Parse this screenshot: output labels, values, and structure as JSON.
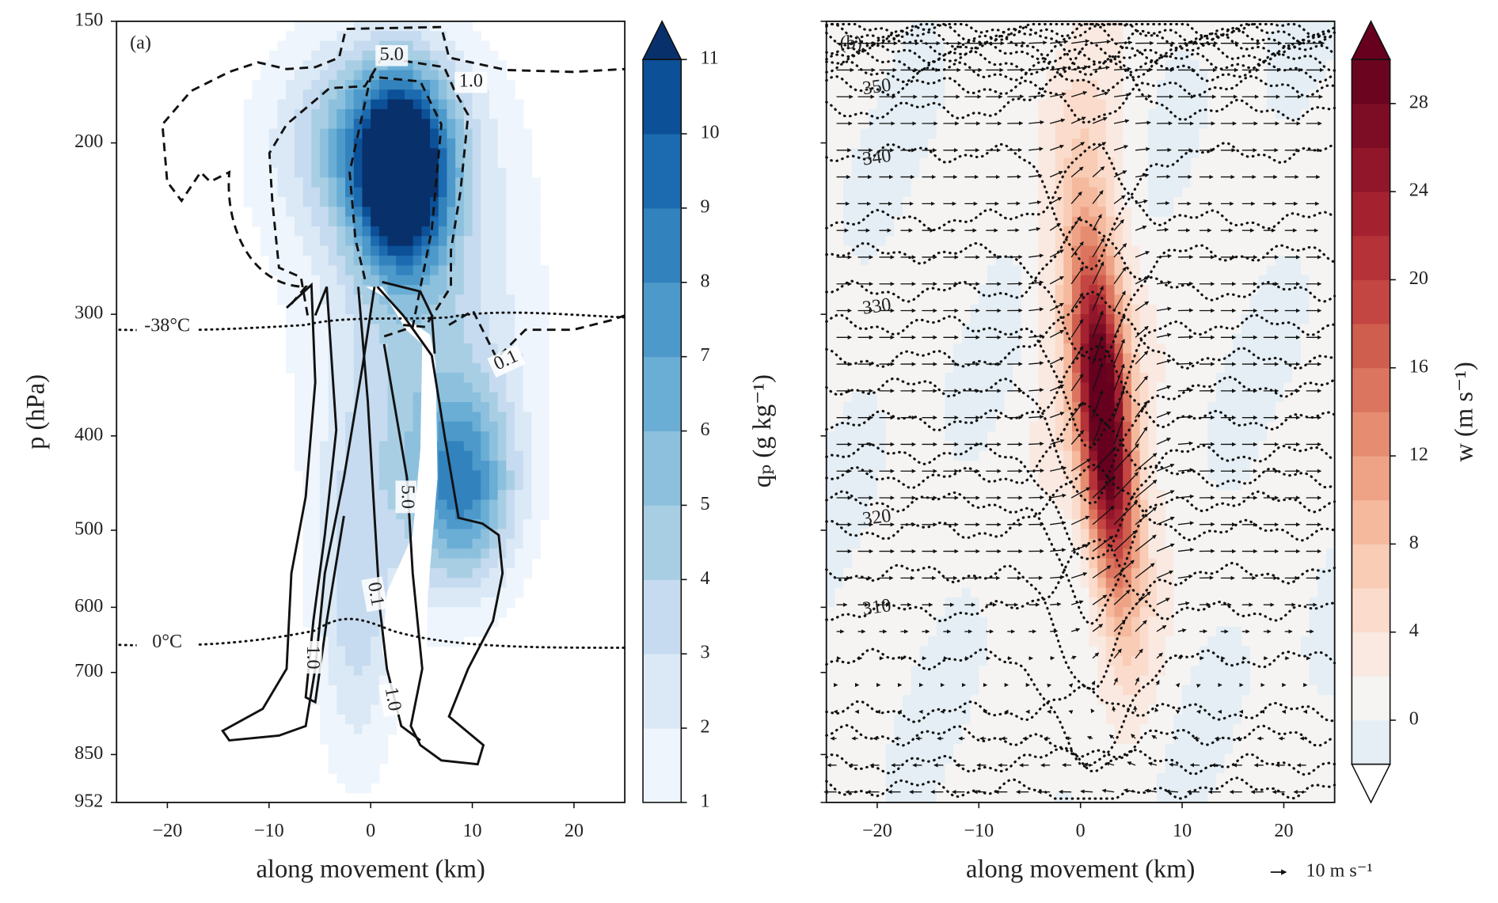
{
  "chart_data": [
    {
      "type": "contour",
      "panel_label": "(a)",
      "xlabel": "along movement (km)",
      "ylabel": "p (hPa)",
      "xlim": [
        -25,
        25
      ],
      "xticks": [
        {
          "value": -20,
          "label": "−20"
        },
        {
          "value": -10,
          "label": "−10"
        },
        0,
        10,
        20
      ],
      "ylim": [
        952,
        150
      ],
      "yscale": "log",
      "yticks": [
        150,
        200,
        300,
        400,
        500,
        600,
        700,
        850,
        952
      ],
      "colorbar": {
        "label": "qₚ (g kg⁻¹)",
        "lim": [
          1,
          11
        ],
        "levels": [
          1,
          2,
          3,
          4,
          5,
          6,
          7,
          8,
          9,
          10,
          11
        ],
        "ticks": [
          1,
          2,
          3,
          4,
          5,
          6,
          7,
          8,
          9,
          10,
          11
        ],
        "colors": [
          "#eef5fc",
          "#dbe9f6",
          "#c6dbef",
          "#a8cee4",
          "#8dc0dd",
          "#6aaed6",
          "#4d99ca",
          "#3282be",
          "#1c6aaf",
          "#0c5097"
        ],
        "extend": "max",
        "over_color": "#08306b"
      },
      "contour_labels": [
        "5.0",
        "1.0",
        "0.1",
        "5.0",
        "0.1",
        "1.0",
        "1.0"
      ],
      "isotherm_labels": [
        "-38°C",
        "0°C"
      ]
    },
    {
      "type": "contour",
      "panel_label": "(b)",
      "xlabel": "along movement (km)",
      "xlim": [
        -25,
        25
      ],
      "xticks": [
        {
          "value": -20,
          "label": "−20"
        },
        {
          "value": -10,
          "label": "−10"
        },
        0,
        10,
        20
      ],
      "ylim": [
        952,
        150
      ],
      "yscale": "log",
      "yticks": [
        150,
        200,
        300,
        400,
        500,
        600,
        700,
        850,
        952
      ],
      "colorbar": {
        "label": "w (m s⁻¹)",
        "lim": [
          -2,
          30
        ],
        "levels": [
          -2,
          0,
          2,
          4,
          6,
          8,
          10,
          12,
          14,
          16,
          18,
          20,
          22,
          24,
          26,
          28,
          30
        ],
        "ticks": [
          0,
          4,
          8,
          12,
          16,
          20,
          24,
          28
        ],
        "colors": [
          "#e4eef4",
          "#f5f4f3",
          "#f9e9e1",
          "#fbdccc",
          "#f8ccb5",
          "#f5b99e",
          "#efa386",
          "#e68c70",
          "#dc755f",
          "#d05e4f",
          "#c34642",
          "#b53238",
          "#a42230",
          "#91162a",
          "#7d0d24",
          "#6b051f"
        ],
        "extend": "both",
        "over_color": "#67001f",
        "under_color": "#ffffff"
      },
      "isentrope_labels": [
        "350",
        "340",
        "330",
        "320",
        "310"
      ],
      "quiver_key": "10 m s⁻¹"
    }
  ]
}
